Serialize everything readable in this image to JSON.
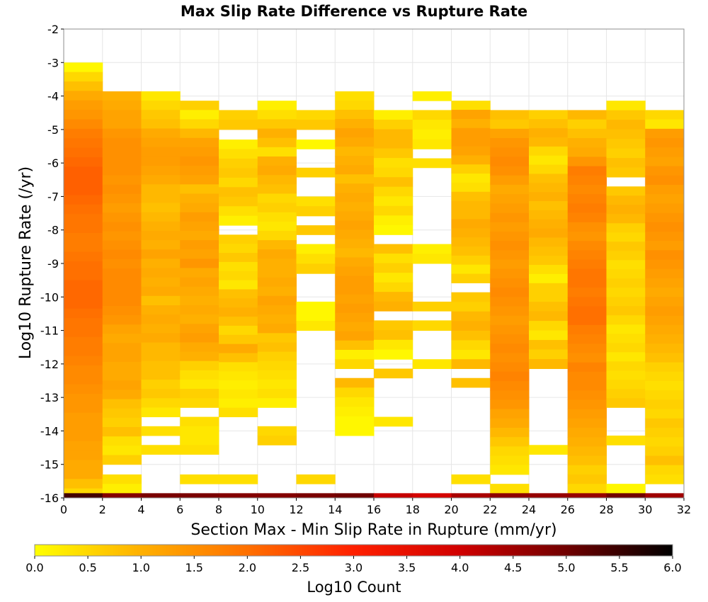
{
  "chart_data": {
    "type": "heatmap",
    "title": "Max Slip Rate Difference vs Rupture Rate",
    "xlabel": "Section Max - Min Slip Rate in Rupture (mm/yr)",
    "ylabel": "Log10 Rupture Rate (/yr)",
    "xlim": [
      0,
      32
    ],
    "ylim": [
      -16,
      -2
    ],
    "x_ticks": [
      "0",
      "2",
      "4",
      "6",
      "8",
      "10",
      "12",
      "14",
      "16",
      "18",
      "20",
      "22",
      "24",
      "26",
      "28",
      "30",
      "32"
    ],
    "y_ticks": [
      "-2",
      "-3",
      "-4",
      "-5",
      "-6",
      "-7",
      "-8",
      "-9",
      "-10",
      "-11",
      "-12",
      "-13",
      "-14",
      "-15",
      "-16"
    ],
    "x_bin_width": 2,
    "y_bin_height": 0.28,
    "grid": true,
    "colorbar": {
      "label": "Log10 Count",
      "min": 0.0,
      "max": 6.0,
      "ticks": [
        "0.0",
        "0.5",
        "1.0",
        "1.5",
        "2.0",
        "2.5",
        "3.0",
        "3.5",
        "4.0",
        "4.5",
        "5.0",
        "5.5",
        "6.0"
      ],
      "placement": "bottom",
      "colors": [
        "#ffff00",
        "#ffb000",
        "#ff7000",
        "#ff2000",
        "#d00000",
        "#700000",
        "#000000"
      ]
    },
    "columns": [
      {
        "x": 1,
        "runs": [
          {
            "y0": -3.0,
            "y1": -16.0,
            "values": [
              0.1,
              0.5,
              0.8,
              1.1,
              1.3,
              1.4,
              1.6,
              1.8,
              1.9,
              2.0,
              2.1,
              2.2,
              2.2,
              2.2,
              2.1,
              2.0,
              1.9,
              1.9,
              1.8,
              1.8,
              1.9,
              2.0,
              2.0,
              2.1,
              2.1,
              2.1,
              2.0,
              1.9,
              1.9,
              1.8,
              1.8,
              1.7,
              1.6,
              1.6,
              1.5,
              1.4,
              1.4,
              1.3,
              1.3,
              1.3,
              1.2,
              1.2,
              1.1,
              1.1,
              0.8,
              0.5
            ]
          }
        ]
      },
      {
        "x": 3,
        "runs": [
          {
            "y0": -3.86,
            "y1": -15.0,
            "values": [
              1.0,
              1.1,
              1.2,
              1.2,
              1.4,
              1.5,
              1.5,
              1.5,
              1.5,
              1.4,
              1.5,
              1.4,
              1.3,
              1.4,
              1.5,
              1.4,
              1.5,
              1.6,
              1.5,
              1.6,
              1.6,
              1.6,
              1.6,
              1.5,
              1.4,
              1.2,
              1.1,
              1.2,
              1.2,
              1.1,
              1.1,
              1.2,
              1.1,
              0.8,
              0.7,
              0.6,
              0.8,
              0.4,
              0.3,
              0.6
            ]
          },
          {
            "y0": -15.3,
            "y1": -15.86,
            "values": [
              0.4,
              0.2
            ]
          }
        ]
      },
      {
        "x": 5,
        "runs": [
          {
            "y0": -3.86,
            "y1": -13.58,
            "values": [
              0.3,
              0.5,
              0.7,
              0.8,
              1.1,
              1.2,
              1.3,
              1.3,
              1.2,
              1.1,
              0.9,
              0.9,
              0.8,
              0.9,
              1.0,
              1.1,
              1.0,
              1.2,
              1.0,
              1.1,
              1.0,
              1.1,
              0.8,
              1.0,
              1.1,
              1.0,
              1.1,
              0.9,
              0.9,
              0.8,
              0.8,
              0.6,
              0.7,
              0.5,
              0.3
            ]
          },
          {
            "y0": -13.86,
            "y1": -14.14,
            "values": [
              0.4
            ]
          },
          {
            "y0": -14.42,
            "y1": -14.7,
            "values": [
              0.4
            ]
          }
        ]
      },
      {
        "x": 7,
        "runs": [
          {
            "y0": -4.14,
            "y1": -13.3,
            "values": [
              0.6,
              0.2,
              0.5,
              0.9,
              1.2,
              1.3,
              1.4,
              1.3,
              1.2,
              0.8,
              1.0,
              1.1,
              1.3,
              1.2,
              1.1,
              1.3,
              1.2,
              1.4,
              1.1,
              1.2,
              1.1,
              1.0,
              1.1,
              1.0,
              1.2,
              1.3,
              1.1,
              1.0,
              0.6,
              0.4,
              0.3,
              0.6,
              0.5
            ]
          },
          {
            "y0": -13.58,
            "y1": -14.7,
            "values": [
              0.4,
              0.3,
              0.3,
              0.4
            ]
          },
          {
            "y0": -15.3,
            "y1": -15.58,
            "values": [
              0.4
            ]
          }
        ]
      },
      {
        "x": 9,
        "runs": [
          {
            "y0": -4.42,
            "y1": -5.0,
            "values": [
              0.6,
              0.7
            ]
          },
          {
            "y0": -5.3,
            "y1": -7.86,
            "values": [
              0.2,
              0.4,
              0.6,
              0.7,
              0.5,
              0.8,
              0.7,
              0.4,
              0.2
            ]
          },
          {
            "y0": -8.14,
            "y1": -13.58,
            "values": [
              0.6,
              0.5,
              0.7,
              0.4,
              0.5,
              0.3,
              0.8,
              0.9,
              1.0,
              0.8,
              0.5,
              0.7,
              1.1,
              0.8,
              0.4,
              0.3,
              0.2,
              0.3,
              0.2,
              0.4
            ]
          },
          {
            "y0": -15.3,
            "y1": -15.58,
            "values": [
              0.4
            ]
          }
        ]
      },
      {
        "x": 11,
        "runs": [
          {
            "y0": -4.14,
            "y1": -13.3,
            "values": [
              0.2,
              0.4,
              0.7,
              1.0,
              0.8,
              0.4,
              1.0,
              1.1,
              0.9,
              0.8,
              0.5,
              0.6,
              0.4,
              0.3,
              0.5,
              0.9,
              1.1,
              1.0,
              1.0,
              1.1,
              1.0,
              1.2,
              1.1,
              1.0,
              1.1,
              0.7,
              0.8,
              0.6,
              0.5,
              0.4,
              0.3,
              0.4,
              0.2
            ]
          },
          {
            "y0": -13.86,
            "y1": -14.42,
            "values": [
              0.5,
              0.6
            ]
          }
        ]
      },
      {
        "x": 13,
        "runs": [
          {
            "y0": -4.42,
            "y1": -5.0,
            "values": [
              0.5,
              0.7
            ]
          },
          {
            "y0": -5.3,
            "y1": -5.58,
            "values": [
              0.1
            ]
          },
          {
            "y0": -6.14,
            "y1": -6.42,
            "values": [
              0.6
            ]
          },
          {
            "y0": -7.0,
            "y1": -7.58,
            "values": [
              0.4,
              0.6
            ]
          },
          {
            "y0": -7.86,
            "y1": -8.14,
            "values": [
              0.7
            ]
          },
          {
            "y0": -8.42,
            "y1": -9.3,
            "values": [
              0.2,
              0.4,
              0.6
            ]
          },
          {
            "y0": -10.14,
            "y1": -11.0,
            "values": [
              0.1,
              0.1,
              0.3
            ]
          },
          {
            "y0": -15.3,
            "y1": -15.58,
            "values": [
              0.5
            ]
          }
        ]
      },
      {
        "x": 15,
        "runs": [
          {
            "y0": -3.86,
            "y1": -11.3,
            "values": [
              0.4,
              0.5,
              0.8,
              1.0,
              1.2,
              1.1,
              0.9,
              1.0,
              1.1,
              0.8,
              1.0,
              1.1,
              1.0,
              1.1,
              1.2,
              1.1,
              1.0,
              0.9,
              1.1,
              1.2,
              1.3,
              1.3,
              1.2,
              1.3,
              1.2,
              1.1,
              1.2
            ]
          },
          {
            "y0": -11.3,
            "y1": -12.14,
            "values": [
              0.8,
              0.2,
              0.5
            ]
          },
          {
            "y0": -12.42,
            "y1": -14.14,
            "values": [
              0.9,
              0.5,
              0.3,
              0.2,
              0.1,
              0.1
            ]
          }
        ]
      },
      {
        "x": 17,
        "runs": [
          {
            "y0": -4.42,
            "y1": -8.14,
            "values": [
              0.2,
              0.6,
              0.9,
              0.9,
              0.7,
              0.4,
              0.5,
              0.8,
              0.5,
              0.3,
              0.5,
              0.2,
              0.1
            ]
          },
          {
            "y0": -8.42,
            "y1": -10.42,
            "values": [
              0.8,
              0.4,
              0.6,
              0.3,
              0.5,
              0.9,
              1.0
            ]
          },
          {
            "y0": -10.7,
            "y1": -11.86,
            "values": [
              0.7,
              0.8,
              0.3,
              0.1
            ]
          },
          {
            "y0": -12.14,
            "y1": -12.42,
            "values": [
              0.7
            ]
          },
          {
            "y0": -13.58,
            "y1": -13.86,
            "values": [
              0.3
            ]
          }
        ]
      },
      {
        "x": 19,
        "runs": [
          {
            "y0": -3.86,
            "y1": -4.14,
            "values": [
              0.2
            ]
          },
          {
            "y0": -4.42,
            "y1": -5.58,
            "values": [
              0.5,
              0.3,
              0.2,
              0.3
            ]
          },
          {
            "y0": -5.86,
            "y1": -6.14,
            "values": [
              0.4
            ]
          },
          {
            "y0": -8.42,
            "y1": -9.0,
            "values": [
              0.2,
              0.3
            ]
          },
          {
            "y0": -10.14,
            "y1": -10.42,
            "values": [
              0.6
            ]
          },
          {
            "y0": -10.7,
            "y1": -11.0,
            "values": [
              0.5
            ]
          },
          {
            "y0": -11.86,
            "y1": -12.14,
            "values": [
              0.3
            ]
          }
        ]
      },
      {
        "x": 21,
        "runs": [
          {
            "y0": -4.14,
            "y1": -9.58,
            "values": [
              0.4,
              1.2,
              1.0,
              1.3,
              1.3,
              1.2,
              1.0,
              0.6,
              0.3,
              0.4,
              0.8,
              0.9,
              0.9,
              1.1,
              1.0,
              0.9,
              0.8,
              0.6,
              0.3,
              0.6
            ]
          },
          {
            "y0": -9.86,
            "y1": -11.58,
            "values": [
              0.7,
              0.6,
              0.9,
              1.0,
              0.8,
              0.5
            ]
          },
          {
            "y0": -11.58,
            "y1": -12.14,
            "values": [
              0.3,
              0.9
            ]
          },
          {
            "y0": -12.42,
            "y1": -12.7,
            "values": [
              0.8
            ]
          },
          {
            "y0": -15.3,
            "y1": -15.58,
            "values": [
              0.4
            ]
          }
        ]
      },
      {
        "x": 23,
        "runs": [
          {
            "y0": -4.42,
            "y1": -15.3,
            "values": [
              0.8,
              0.7,
              1.2,
              1.4,
              1.5,
              1.6,
              1.5,
              1.3,
              1.1,
              1.2,
              1.3,
              1.4,
              1.3,
              1.4,
              1.5,
              1.4,
              1.3,
              1.4,
              1.5,
              1.6,
              1.5,
              1.4,
              1.3,
              1.4,
              1.5,
              1.6,
              1.5,
              1.6,
              1.7,
              1.6,
              1.5,
              1.4,
              1.2,
              1.1,
              0.9,
              0.7,
              0.5,
              0.4,
              0.3
            ]
          },
          {
            "y0": -15.58,
            "y1": -15.86,
            "values": [
              0.4
            ]
          }
        ]
      },
      {
        "x": 25,
        "runs": [
          {
            "y0": -4.42,
            "y1": -9.86,
            "values": [
              0.6,
              0.8,
              1.0,
              0.9,
              0.5,
              0.3,
              0.5,
              0.8,
              0.9,
              1.0,
              0.8,
              0.9,
              1.0,
              1.1,
              0.9,
              0.8,
              0.7,
              0.4,
              0.2,
              0.6
            ]
          },
          {
            "y0": -9.86,
            "y1": -12.14,
            "values": [
              0.6,
              0.8,
              0.9,
              0.5,
              0.3,
              0.8,
              0.6,
              0.9
            ]
          },
          {
            "y0": -14.42,
            "y1": -14.7,
            "values": [
              0.3
            ]
          }
        ]
      },
      {
        "x": 27,
        "runs": [
          {
            "y0": -4.42,
            "y1": -15.86,
            "values": [
              0.9,
              0.6,
              0.8,
              1.0,
              1.1,
              1.4,
              1.8,
              1.7,
              1.6,
              1.7,
              1.8,
              1.7,
              1.5,
              1.4,
              1.6,
              1.7,
              1.8,
              1.9,
              1.9,
              1.8,
              1.9,
              2.0,
              2.0,
              1.8,
              1.7,
              1.6,
              1.5,
              1.7,
              1.6,
              1.6,
              1.5,
              1.4,
              1.3,
              1.2,
              1.1,
              1.0,
              0.9,
              0.8,
              0.6,
              0.7,
              0.5
            ]
          }
        ]
      },
      {
        "x": 29,
        "runs": [
          {
            "y0": -4.14,
            "y1": -6.42,
            "values": [
              0.3,
              0.7,
              0.9,
              0.8,
              0.7,
              0.6,
              0.8,
              0.7
            ]
          },
          {
            "y0": -6.7,
            "y1": -13.3,
            "values": [
              0.7,
              0.9,
              1.0,
              0.9,
              0.6,
              0.5,
              0.7,
              0.6,
              0.4,
              0.5,
              0.6,
              0.5,
              0.6,
              0.7,
              0.5,
              0.3,
              0.4,
              0.5,
              0.3,
              0.5,
              0.4,
              0.5,
              0.6,
              0.7
            ]
          },
          {
            "y0": -14.14,
            "y1": -14.42,
            "values": [
              0.4
            ]
          },
          {
            "y0": -15.58,
            "y1": -15.86,
            "values": [
              0.1
            ]
          }
        ]
      },
      {
        "x": 31,
        "runs": [
          {
            "y0": -4.42,
            "y1": -15.58,
            "values": [
              0.5,
              0.3,
              1.3,
              1.4,
              1.3,
              1.2,
              1.4,
              1.5,
              1.3,
              1.2,
              1.3,
              1.4,
              1.5,
              1.4,
              1.3,
              1.5,
              1.4,
              1.3,
              1.2,
              1.1,
              1.2,
              1.3,
              1.2,
              1.1,
              1.0,
              0.9,
              0.8,
              0.6,
              0.5,
              0.4,
              0.5,
              0.6,
              0.5,
              0.7,
              0.6,
              0.5,
              0.6,
              0.8,
              0.5,
              0.4
            ]
          }
        ]
      }
    ],
    "bottom_row": {
      "y0": -15.86,
      "y1": -16.0,
      "values": [
        5.4,
        4.8,
        4.9,
        4.9,
        4.8,
        4.8,
        4.9,
        5.0,
        4.1,
        3.9,
        4.4,
        4.7,
        4.6,
        4.6,
        5.0,
        4.5
      ]
    }
  }
}
